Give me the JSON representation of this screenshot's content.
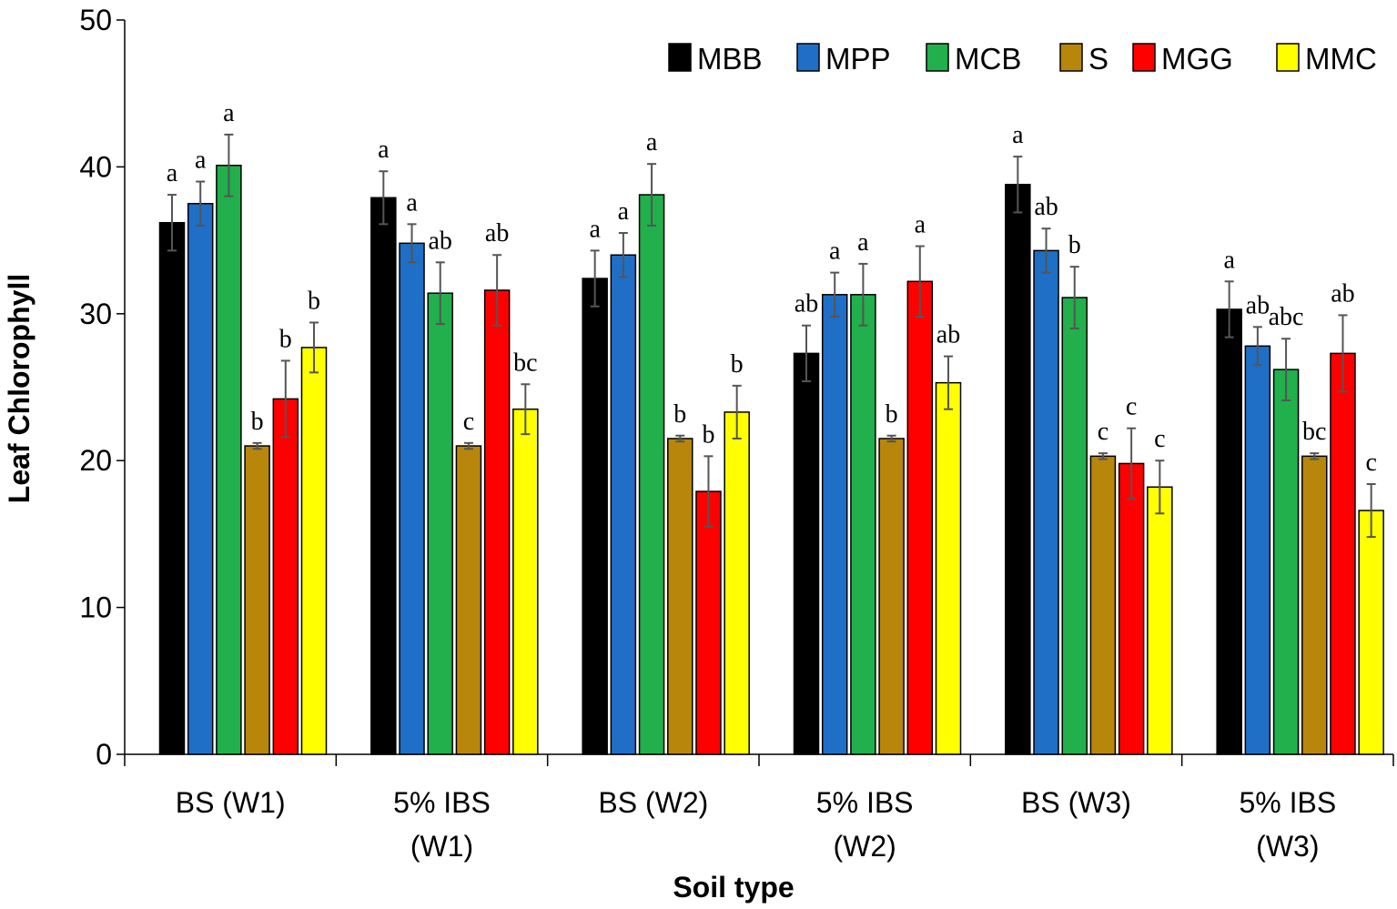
{
  "chart_data": {
    "type": "bar",
    "title": "",
    "xlabel": "Soil type",
    "ylabel": "Leaf Chlorophyll",
    "ylim": [
      0,
      50
    ],
    "yticks": [
      0,
      10,
      20,
      30,
      40,
      50
    ],
    "legend_position": "top-right",
    "categories": [
      [
        "BS (W1)"
      ],
      [
        "5% IBS",
        "(W1)"
      ],
      [
        "BS (W2)"
      ],
      [
        "5% IBS",
        "(W2)"
      ],
      [
        "BS (W3)"
      ],
      [
        "5% IBS",
        "(W3)"
      ]
    ],
    "series": [
      {
        "name": "MBB",
        "color": "#000000",
        "values": [
          36.2,
          37.9,
          32.4,
          27.3,
          38.8,
          30.3
        ],
        "errors": [
          1.9,
          1.8,
          1.9,
          1.9,
          1.9,
          1.9
        ],
        "letters": [
          "a",
          "a",
          "a",
          "ab",
          "a",
          "a"
        ]
      },
      {
        "name": "MPP",
        "color": "#1f6fc6",
        "values": [
          37.5,
          34.8,
          34.0,
          31.3,
          34.3,
          27.8
        ],
        "errors": [
          1.5,
          1.3,
          1.5,
          1.5,
          1.5,
          1.3
        ],
        "letters": [
          "a",
          "a",
          "a",
          "a",
          "ab",
          "ab"
        ]
      },
      {
        "name": "MCB",
        "color": "#21b04b",
        "values": [
          40.1,
          31.4,
          38.1,
          31.3,
          31.1,
          26.2
        ],
        "errors": [
          2.1,
          2.1,
          2.1,
          2.1,
          2.1,
          2.1
        ],
        "letters": [
          "a",
          "ab",
          "a",
          "a",
          "b",
          "abc"
        ]
      },
      {
        "name": "S",
        "color": "#b8860b",
        "values": [
          21.0,
          21.0,
          21.5,
          21.5,
          20.3,
          20.3
        ],
        "errors": [
          0.2,
          0.2,
          0.2,
          0.2,
          0.2,
          0.2
        ],
        "letters": [
          "b",
          "c",
          "b",
          "b",
          "c",
          "bc"
        ]
      },
      {
        "name": "MGG",
        "color": "#ff0000",
        "values": [
          24.2,
          31.6,
          17.9,
          32.2,
          19.8,
          27.3
        ],
        "errors": [
          2.6,
          2.4,
          2.4,
          2.4,
          2.4,
          2.6
        ],
        "letters": [
          "b",
          "ab",
          "b",
          "a",
          "c",
          "ab"
        ]
      },
      {
        "name": "MMC",
        "color": "#ffff00",
        "values": [
          27.7,
          23.5,
          23.3,
          25.3,
          18.2,
          16.6
        ],
        "errors": [
          1.7,
          1.7,
          1.8,
          1.8,
          1.8,
          1.8
        ],
        "letters": [
          "b",
          "bc",
          "b",
          "ab",
          "c",
          "c"
        ]
      }
    ]
  }
}
